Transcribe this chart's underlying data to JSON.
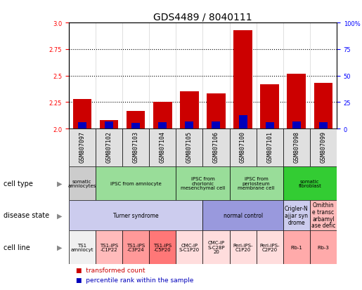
{
  "title": "GDS4489 / 8040111",
  "samples": [
    "GSM807097",
    "GSM807102",
    "GSM807103",
    "GSM807104",
    "GSM807105",
    "GSM807106",
    "GSM807100",
    "GSM807101",
    "GSM807098",
    "GSM807099"
  ],
  "red_values": [
    2.28,
    2.08,
    2.17,
    2.25,
    2.35,
    2.33,
    2.93,
    2.42,
    2.52,
    2.43
  ],
  "blue_values": [
    0.06,
    0.065,
    0.055,
    0.06,
    0.065,
    0.065,
    0.13,
    0.06,
    0.065,
    0.06
  ],
  "y_min": 2.0,
  "y_max": 3.0,
  "y_ticks_left": [
    2.0,
    2.25,
    2.5,
    2.75,
    3.0
  ],
  "y_ticks_right": [
    0,
    25,
    50,
    75,
    100
  ],
  "cell_type_groups": [
    {
      "label": "somatic\namniocytes",
      "span": [
        0,
        1
      ],
      "color": "#cccccc"
    },
    {
      "label": "iPSC from amniocyte",
      "span": [
        1,
        4
      ],
      "color": "#99dd99"
    },
    {
      "label": "iPSC from\nchorionic\nmesenchymal cell",
      "span": [
        4,
        6
      ],
      "color": "#99dd99"
    },
    {
      "label": "iPSC from\nperiosteum\nmembrane cell",
      "span": [
        6,
        8
      ],
      "color": "#99dd99"
    },
    {
      "label": "somatic\nfibroblast",
      "span": [
        8,
        10
      ],
      "color": "#33cc33"
    }
  ],
  "disease_state_groups": [
    {
      "label": "Turner syndrome",
      "span": [
        0,
        5
      ],
      "color": "#ccccee"
    },
    {
      "label": "normal control",
      "span": [
        5,
        8
      ],
      "color": "#9999dd"
    },
    {
      "label": "Crigler-N\najjar syn\ndrome",
      "span": [
        8,
        9
      ],
      "color": "#ccccee"
    },
    {
      "label": "Omithin\ne transc\narbamyl\nase defic",
      "span": [
        9,
        10
      ],
      "color": "#ffbbbb"
    }
  ],
  "cell_line_groups": [
    {
      "label": "TS1\namniocyt",
      "span": [
        0,
        1
      ],
      "color": "#f0f0f0"
    },
    {
      "label": "TS1-iPS\n-C1P22",
      "span": [
        1,
        2
      ],
      "color": "#ffbbbb"
    },
    {
      "label": "TS1-iPS\n-C3P24",
      "span": [
        2,
        3
      ],
      "color": "#ff9999"
    },
    {
      "label": "TS1-iPS\n-C5P20",
      "span": [
        3,
        4
      ],
      "color": "#ff7777"
    },
    {
      "label": "CMC-iP\nS-C1P20",
      "span": [
        4,
        5
      ],
      "color": "#ffdddd"
    },
    {
      "label": "CMC-iP\nS-C28P\n20",
      "span": [
        5,
        6
      ],
      "color": "#ffdddd"
    },
    {
      "label": "Peri-iPS-\nC1P20",
      "span": [
        6,
        7
      ],
      "color": "#ffdddd"
    },
    {
      "label": "Peri-iPS-\nC2P20",
      "span": [
        7,
        8
      ],
      "color": "#ffdddd"
    },
    {
      "label": "Fib-1",
      "span": [
        8,
        9
      ],
      "color": "#ffaaaa"
    },
    {
      "label": "Fib-3",
      "span": [
        9,
        10
      ],
      "color": "#ffaaaa"
    }
  ],
  "bar_color_red": "#cc0000",
  "bar_color_blue": "#0000bb",
  "background_color": "#ffffff",
  "title_fontsize": 10,
  "tick_fontsize": 6,
  "table_fontsize": 5,
  "row_label_fontsize": 7
}
